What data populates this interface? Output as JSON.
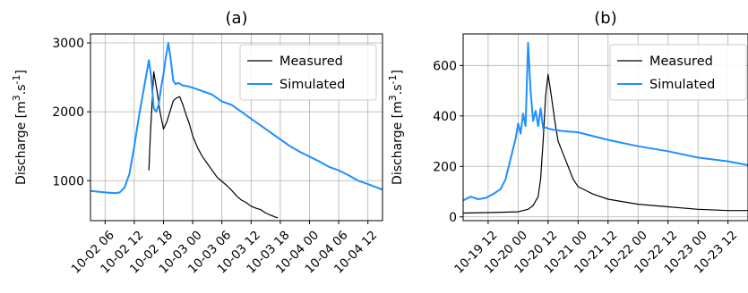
{
  "chart_data": [
    {
      "type": "line",
      "title": "(a)",
      "ylabel": "Discharge [m³.s⁻¹]",
      "xlabel": "",
      "x_type": "datetime",
      "xlim": [
        "2023-10-02 03:00",
        "2023-10-04 15:00"
      ],
      "ylim": [
        420,
        3130
      ],
      "x_ticks": [
        "2023-10-02 06:00",
        "2023-10-02 12:00",
        "2023-10-02 18:00",
        "2023-10-03 00:00",
        "2023-10-03 06:00",
        "2023-10-03 12:00",
        "2023-10-03 18:00",
        "2023-10-04 00:00",
        "2023-10-04 06:00",
        "2023-10-04 12:00"
      ],
      "x_tick_labels": [
        "10-02 06",
        "10-02 12",
        "10-02 18",
        "10-03 00",
        "10-03 06",
        "10-03 12",
        "10-03 18",
        "10-04 00",
        "10-04 06",
        "10-04 12"
      ],
      "y_ticks": [
        1000,
        2000,
        3000
      ],
      "y_tick_labels": [
        "1000",
        "2000",
        "3000"
      ],
      "grid": true,
      "legend": "top-right",
      "series": [
        {
          "name": "Measured",
          "color": "#000000",
          "x": [
            "2023-10-02 15:00",
            "2023-10-02 15:20",
            "2023-10-02 16:00",
            "2023-10-02 16:40",
            "2023-10-02 17:20",
            "2023-10-02 18:00",
            "2023-10-02 18:40",
            "2023-10-02 19:20",
            "2023-10-02 20:00",
            "2023-10-02 20:40",
            "2023-10-02 21:20",
            "2023-10-02 22:00",
            "2023-10-02 22:40",
            "2023-10-02 23:20",
            "2023-10-03 00:00",
            "2023-10-03 01:00",
            "2023-10-03 02:00",
            "2023-10-03 03:00",
            "2023-10-03 04:00",
            "2023-10-03 05:00",
            "2023-10-03 06:00",
            "2023-10-03 07:00",
            "2023-10-03 08:00",
            "2023-10-03 09:00",
            "2023-10-03 10:00",
            "2023-10-03 11:00",
            "2023-10-03 12:00",
            "2023-10-03 13:00",
            "2023-10-03 14:00",
            "2023-10-03 15:00",
            "2023-10-03 16:00",
            "2023-10-03 17:00",
            "2023-10-03 17:30"
          ],
          "y": [
            1150,
            1700,
            2580,
            2300,
            1980,
            1750,
            1850,
            2000,
            2160,
            2200,
            2220,
            2100,
            1950,
            1820,
            1650,
            1480,
            1350,
            1250,
            1150,
            1050,
            990,
            930,
            860,
            780,
            720,
            680,
            630,
            600,
            580,
            530,
            500,
            470,
            460
          ]
        },
        {
          "name": "Simulated",
          "color": "#1e90ff",
          "x": [
            "2023-10-02 03:00",
            "2023-10-02 06:00",
            "2023-10-02 08:00",
            "2023-10-02 09:00",
            "2023-10-02 10:00",
            "2023-10-02 11:00",
            "2023-10-02 12:00",
            "2023-10-02 13:00",
            "2023-10-02 14:00",
            "2023-10-02 15:00",
            "2023-10-02 15:30",
            "2023-10-02 16:00",
            "2023-10-02 16:30",
            "2023-10-02 17:00",
            "2023-10-02 17:30",
            "2023-10-02 18:00",
            "2023-10-02 18:30",
            "2023-10-02 19:00",
            "2023-10-02 19:30",
            "2023-10-02 20:00",
            "2023-10-02 20:30",
            "2023-10-02 21:00",
            "2023-10-02 21:30",
            "2023-10-02 22:00",
            "2023-10-02 23:00",
            "2023-10-03 00:00",
            "2023-10-03 02:00",
            "2023-10-03 04:00",
            "2023-10-03 06:00",
            "2023-10-03 08:00",
            "2023-10-03 10:00",
            "2023-10-03 12:00",
            "2023-10-03 14:00",
            "2023-10-03 16:00",
            "2023-10-03 18:00",
            "2023-10-03 20:00",
            "2023-10-03 22:00",
            "2023-10-04 00:00",
            "2023-10-04 02:00",
            "2023-10-04 04:00",
            "2023-10-04 06:00",
            "2023-10-04 08:00",
            "2023-10-04 10:00",
            "2023-10-04 12:00",
            "2023-10-04 15:00"
          ],
          "y": [
            850,
            830,
            820,
            830,
            900,
            1100,
            1500,
            1950,
            2350,
            2750,
            2500,
            2050,
            2000,
            2100,
            2350,
            2550,
            2800,
            3000,
            2750,
            2450,
            2400,
            2420,
            2400,
            2380,
            2370,
            2350,
            2300,
            2250,
            2150,
            2100,
            2000,
            1900,
            1800,
            1700,
            1600,
            1500,
            1420,
            1350,
            1280,
            1200,
            1150,
            1080,
            1000,
            950,
            870
          ]
        }
      ]
    },
    {
      "type": "line",
      "title": "(b)",
      "ylabel": "Discharge [m³.s⁻¹]",
      "xlabel": "",
      "x_type": "datetime",
      "xlim": [
        "2023-10-19 02:00",
        "2023-10-23 20:00"
      ],
      "ylim": [
        -15,
        725
      ],
      "x_ticks": [
        "2023-10-19 12:00",
        "2023-10-20 00:00",
        "2023-10-20 12:00",
        "2023-10-21 00:00",
        "2023-10-21 12:00",
        "2023-10-22 00:00",
        "2023-10-22 12:00",
        "2023-10-23 00:00",
        "2023-10-23 12:00"
      ],
      "x_tick_labels": [
        "10-19 12",
        "10-20 00",
        "10-20 12",
        "10-21 00",
        "10-21 12",
        "10-22 00",
        "10-22 12",
        "10-23 00",
        "10-23 12"
      ],
      "y_ticks": [
        0,
        200,
        400,
        600
      ],
      "y_tick_labels": [
        "0",
        "200",
        "400",
        "600"
      ],
      "grid": true,
      "legend": "top-right",
      "series": [
        {
          "name": "Measured",
          "color": "#000000",
          "x": [
            "2023-10-19 02:00",
            "2023-10-19 12:00",
            "2023-10-20 00:00",
            "2023-10-20 04:00",
            "2023-10-20 06:00",
            "2023-10-20 08:00",
            "2023-10-20 09:00",
            "2023-10-20 10:00",
            "2023-10-20 11:00",
            "2023-10-20 12:00",
            "2023-10-20 13:00",
            "2023-10-20 14:00",
            "2023-10-20 15:00",
            "2023-10-20 16:00",
            "2023-10-20 18:00",
            "2023-10-20 20:00",
            "2023-10-20 22:00",
            "2023-10-21 00:00",
            "2023-10-21 03:00",
            "2023-10-21 06:00",
            "2023-10-21 12:00",
            "2023-10-22 00:00",
            "2023-10-22 12:00",
            "2023-10-23 00:00",
            "2023-10-23 12:00",
            "2023-10-23 20:00"
          ],
          "y": [
            15,
            17,
            20,
            30,
            45,
            80,
            150,
            300,
            480,
            565,
            500,
            430,
            360,
            300,
            250,
            200,
            150,
            120,
            105,
            90,
            70,
            50,
            40,
            30,
            25,
            25
          ]
        },
        {
          "name": "Simulated",
          "color": "#1e90ff",
          "x": [
            "2023-10-19 02:00",
            "2023-10-19 05:00",
            "2023-10-19 08:00",
            "2023-10-19 11:00",
            "2023-10-19 14:00",
            "2023-10-19 17:00",
            "2023-10-19 19:00",
            "2023-10-19 21:00",
            "2023-10-19 23:00",
            "2023-10-20 00:00",
            "2023-10-20 01:00",
            "2023-10-20 02:00",
            "2023-10-20 03:00",
            "2023-10-20 04:00",
            "2023-10-20 05:00",
            "2023-10-20 06:00",
            "2023-10-20 07:00",
            "2023-10-20 08:00",
            "2023-10-20 09:00",
            "2023-10-20 10:00",
            "2023-10-20 11:00",
            "2023-10-20 12:00",
            "2023-10-20 14:00",
            "2023-10-20 18:00",
            "2023-10-21 00:00",
            "2023-10-21 06:00",
            "2023-10-21 12:00",
            "2023-10-22 00:00",
            "2023-10-22 12:00",
            "2023-10-23 00:00",
            "2023-10-23 12:00",
            "2023-10-23 20:00"
          ],
          "y": [
            65,
            80,
            70,
            75,
            90,
            110,
            150,
            230,
            310,
            370,
            330,
            410,
            360,
            690,
            500,
            380,
            420,
            360,
            430,
            350,
            355,
            350,
            345,
            340,
            335,
            320,
            305,
            280,
            260,
            235,
            220,
            205
          ]
        }
      ]
    }
  ]
}
